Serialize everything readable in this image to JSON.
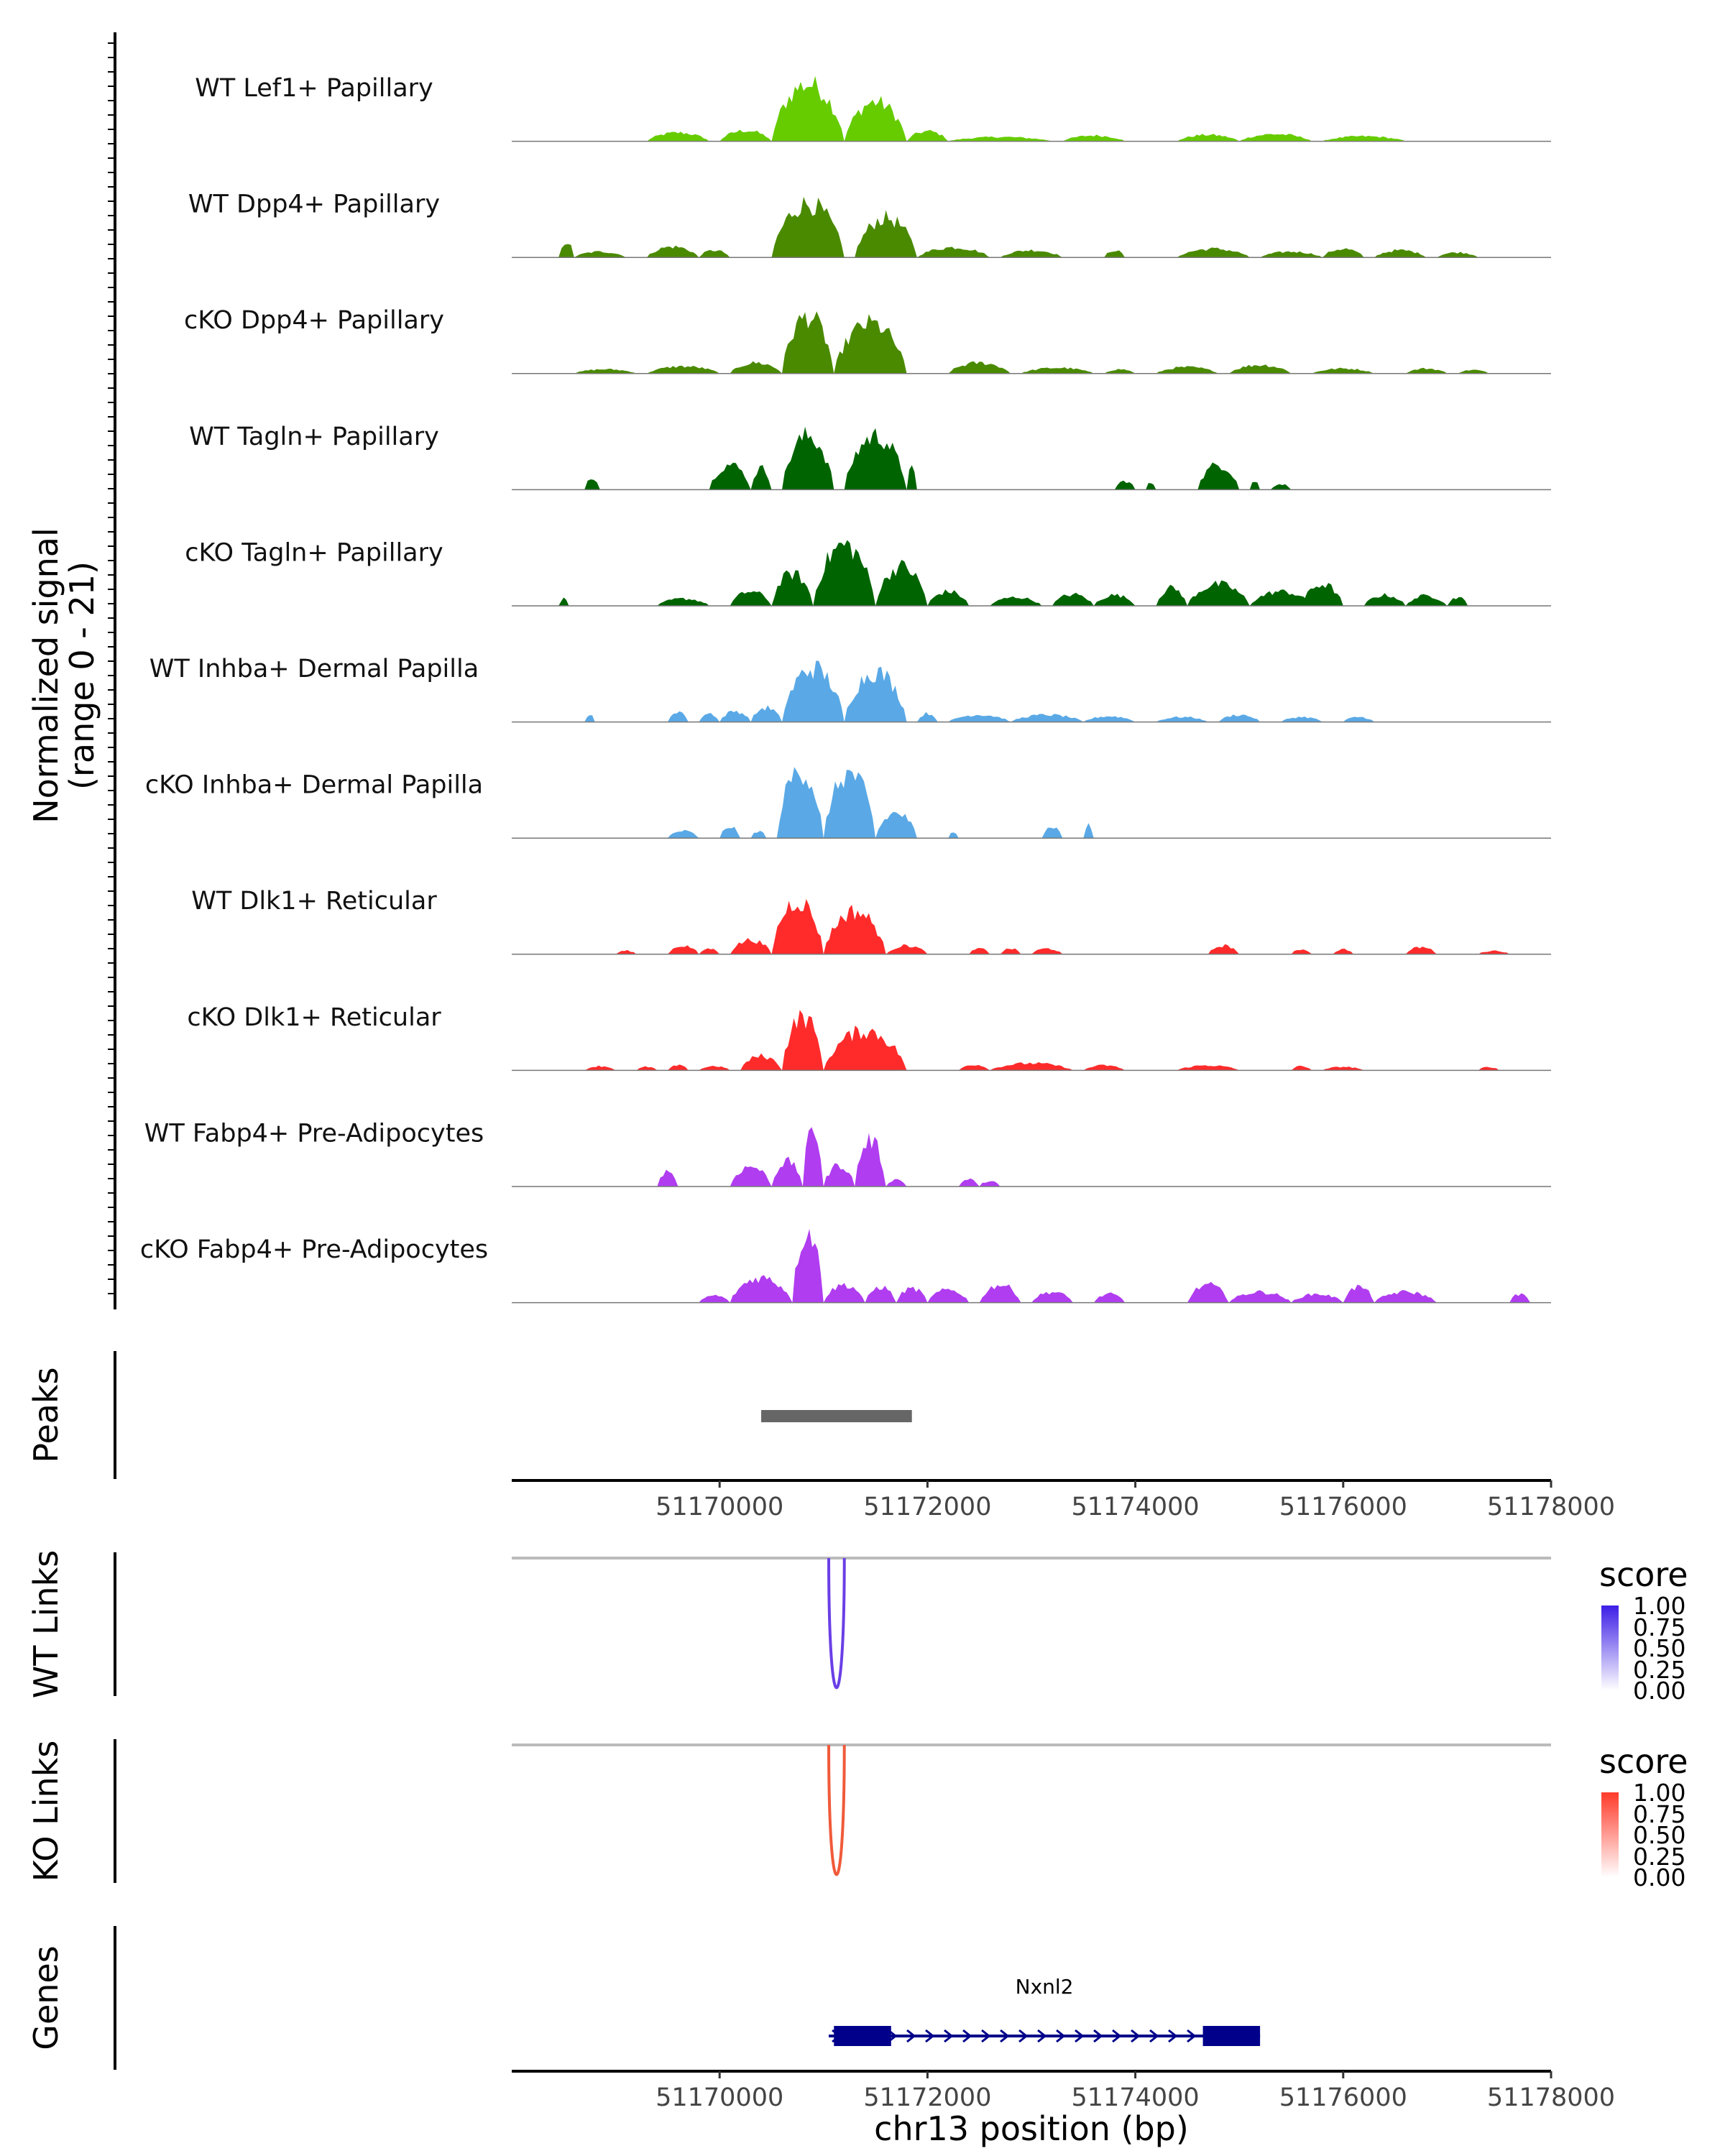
{
  "chart_data": {
    "type": "area",
    "title": "",
    "chromosome": "chr13",
    "xlabel": "chr13 position (bp)",
    "xlim": [
      51168000,
      51178000
    ],
    "x_ticks": [
      "51170000",
      "51172000",
      "51174000",
      "51176000",
      "51178000"
    ],
    "signal_ylabel_line1": "Normalized signal",
    "signal_ylabel_line2": "(range 0 - 21)",
    "ylim": [
      0,
      21
    ],
    "tracks": [
      {
        "name": "WT Lef1+ Papillary",
        "color": "#66cc00",
        "peaks": [
          [
            51169300,
            51169900,
            0.12
          ],
          [
            51170000,
            51170500,
            0.15
          ],
          [
            51170500,
            51171200,
            0.8
          ],
          [
            51171200,
            51171800,
            0.55
          ],
          [
            51171800,
            51172200,
            0.14
          ],
          [
            51172200,
            51173200,
            0.06
          ],
          [
            51173300,
            51173900,
            0.08
          ],
          [
            51174400,
            51175000,
            0.09
          ],
          [
            51175000,
            51175700,
            0.1
          ],
          [
            51175800,
            51176600,
            0.07
          ]
        ]
      },
      {
        "name": "WT Dpp4+ Papillary",
        "color": "#4a8a00",
        "peaks": [
          [
            51168450,
            51168600,
            0.22
          ],
          [
            51168600,
            51169100,
            0.08
          ],
          [
            51169300,
            51169800,
            0.15
          ],
          [
            51169800,
            51170100,
            0.1
          ],
          [
            51170500,
            51171200,
            0.75
          ],
          [
            51171300,
            51171900,
            0.55
          ],
          [
            51171900,
            51172600,
            0.14
          ],
          [
            51172700,
            51173300,
            0.1
          ],
          [
            51173700,
            51173900,
            0.1
          ],
          [
            51174400,
            51175100,
            0.12
          ],
          [
            51175200,
            51175800,
            0.08
          ],
          [
            51175800,
            51176200,
            0.12
          ],
          [
            51176300,
            51176800,
            0.1
          ],
          [
            51176900,
            51177300,
            0.07
          ]
        ]
      },
      {
        "name": "cKO Dpp4+ Papillary",
        "color": "#4a8a00",
        "peaks": [
          [
            51168600,
            51169200,
            0.06
          ],
          [
            51169300,
            51170000,
            0.1
          ],
          [
            51170100,
            51170600,
            0.15
          ],
          [
            51170600,
            51171100,
            0.8
          ],
          [
            51171100,
            51171800,
            0.7
          ],
          [
            51172200,
            51172800,
            0.15
          ],
          [
            51172900,
            51173600,
            0.08
          ],
          [
            51173700,
            51174000,
            0.06
          ],
          [
            51174200,
            51174800,
            0.09
          ],
          [
            51174900,
            51175500,
            0.12
          ],
          [
            51175700,
            51176300,
            0.07
          ],
          [
            51176600,
            51177000,
            0.07
          ],
          [
            51177100,
            51177400,
            0.05
          ]
        ]
      },
      {
        "name": "WT Tagln+ Papillary",
        "color": "#006400",
        "peaks": [
          [
            51168700,
            51168850,
            0.18
          ],
          [
            51169900,
            51170300,
            0.35
          ],
          [
            51170300,
            51170500,
            0.3
          ],
          [
            51170600,
            51171100,
            0.75
          ],
          [
            51171200,
            51171800,
            0.75
          ],
          [
            51171800,
            51171900,
            0.3
          ],
          [
            51173800,
            51174000,
            0.12
          ],
          [
            51174100,
            51174200,
            0.1
          ],
          [
            51174600,
            51175000,
            0.35
          ],
          [
            51175100,
            51175200,
            0.12
          ],
          [
            51175300,
            51175500,
            0.08
          ]
        ]
      },
      {
        "name": "cKO Tagln+ Papillary",
        "color": "#006400",
        "peaks": [
          [
            51168450,
            51168550,
            0.1
          ],
          [
            51169400,
            51169900,
            0.1
          ],
          [
            51170100,
            51170500,
            0.2
          ],
          [
            51170500,
            51170900,
            0.45
          ],
          [
            51170900,
            51171500,
            0.85
          ],
          [
            51171500,
            51172000,
            0.55
          ],
          [
            51172000,
            51172400,
            0.2
          ],
          [
            51172600,
            51173100,
            0.12
          ],
          [
            51173200,
            51173600,
            0.16
          ],
          [
            51173600,
            51174000,
            0.15
          ],
          [
            51174200,
            51174500,
            0.25
          ],
          [
            51174500,
            51175100,
            0.3
          ],
          [
            51175100,
            51175700,
            0.2
          ],
          [
            51175600,
            51176000,
            0.3
          ],
          [
            51176200,
            51176600,
            0.15
          ],
          [
            51176600,
            51177000,
            0.14
          ],
          [
            51177000,
            51177200,
            0.12
          ]
        ]
      },
      {
        "name": "WT Inhba+ Dermal Papilla",
        "color": "#5aa9e6",
        "peaks": [
          [
            51168700,
            51168800,
            0.1
          ],
          [
            51169500,
            51169700,
            0.15
          ],
          [
            51169800,
            51170000,
            0.12
          ],
          [
            51170000,
            51170300,
            0.15
          ],
          [
            51170300,
            51170600,
            0.2
          ],
          [
            51170600,
            51171200,
            0.75
          ],
          [
            51171200,
            51171800,
            0.7
          ],
          [
            51171900,
            51172100,
            0.12
          ],
          [
            51172200,
            51172800,
            0.1
          ],
          [
            51172800,
            51173500,
            0.1
          ],
          [
            51173500,
            51174000,
            0.08
          ],
          [
            51174200,
            51174700,
            0.07
          ],
          [
            51174800,
            51175200,
            0.1
          ],
          [
            51175400,
            51175800,
            0.07
          ],
          [
            51176000,
            51176300,
            0.07
          ]
        ]
      },
      {
        "name": "cKO Inhba+ Dermal Papilla",
        "color": "#5aa9e6",
        "peaks": [
          [
            51169500,
            51169800,
            0.1
          ],
          [
            51170000,
            51170200,
            0.16
          ],
          [
            51170300,
            51170450,
            0.1
          ],
          [
            51170550,
            51171000,
            0.95
          ],
          [
            51171000,
            51171500,
            0.9
          ],
          [
            51171500,
            51171900,
            0.35
          ],
          [
            51172200,
            51172300,
            0.1
          ],
          [
            51173100,
            51173300,
            0.16
          ],
          [
            51173500,
            51173600,
            0.18
          ]
        ]
      },
      {
        "name": "WT Dlk1+ Reticular",
        "color": "#ff2b2b",
        "peaks": [
          [
            51169000,
            51169200,
            0.05
          ],
          [
            51169500,
            51169800,
            0.12
          ],
          [
            51169800,
            51170000,
            0.08
          ],
          [
            51170100,
            51170500,
            0.2
          ],
          [
            51170500,
            51171000,
            0.75
          ],
          [
            51171000,
            51171600,
            0.6
          ],
          [
            51171600,
            51172000,
            0.12
          ],
          [
            51172400,
            51172600,
            0.08
          ],
          [
            51172700,
            51172900,
            0.08
          ],
          [
            51173000,
            51173300,
            0.08
          ],
          [
            51174700,
            51175000,
            0.12
          ],
          [
            51175500,
            51175700,
            0.07
          ],
          [
            51175900,
            51176100,
            0.07
          ],
          [
            51176600,
            51176900,
            0.1
          ],
          [
            51177300,
            51177600,
            0.05
          ]
        ]
      },
      {
        "name": "cKO Dlk1+ Reticular",
        "color": "#ff2b2b",
        "peaks": [
          [
            51168700,
            51169000,
            0.06
          ],
          [
            51169200,
            51169400,
            0.05
          ],
          [
            51169500,
            51169700,
            0.07
          ],
          [
            51169800,
            51170100,
            0.06
          ],
          [
            51170200,
            51170600,
            0.2
          ],
          [
            51170600,
            51171000,
            0.75
          ],
          [
            51171000,
            51171800,
            0.55
          ],
          [
            51172300,
            51172600,
            0.08
          ],
          [
            51172600,
            51173400,
            0.1
          ],
          [
            51173500,
            51173900,
            0.07
          ],
          [
            51174400,
            51175000,
            0.07
          ],
          [
            51175500,
            51175700,
            0.06
          ],
          [
            51175800,
            51176200,
            0.05
          ],
          [
            51177300,
            51177500,
            0.05
          ]
        ]
      },
      {
        "name": "WT Fabp4+ Pre-Adipocytes",
        "color": "#b03df0",
        "peaks": [
          [
            51169400,
            51169600,
            0.22
          ],
          [
            51170100,
            51170500,
            0.28
          ],
          [
            51170500,
            51170800,
            0.35
          ],
          [
            51170800,
            51171000,
            0.8
          ],
          [
            51171000,
            51171300,
            0.3
          ],
          [
            51171300,
            51171600,
            0.65
          ],
          [
            51171600,
            51171800,
            0.1
          ],
          [
            51172300,
            51172500,
            0.1
          ],
          [
            51172500,
            51172700,
            0.08
          ]
        ]
      },
      {
        "name": "cKO Fabp4+ Pre-Adipocytes",
        "color": "#b03df0",
        "peaks": [
          [
            51169800,
            51170100,
            0.1
          ],
          [
            51170100,
            51170700,
            0.35
          ],
          [
            51170700,
            51171000,
            1.0
          ],
          [
            51171000,
            51171400,
            0.25
          ],
          [
            51171400,
            51171700,
            0.22
          ],
          [
            51171700,
            51172000,
            0.2
          ],
          [
            51172000,
            51172400,
            0.18
          ],
          [
            51172500,
            51172900,
            0.25
          ],
          [
            51173000,
            51173400,
            0.15
          ],
          [
            51173600,
            51173900,
            0.12
          ],
          [
            51174500,
            51174900,
            0.25
          ],
          [
            51174900,
            51175500,
            0.15
          ],
          [
            51175500,
            51176000,
            0.12
          ],
          [
            51176000,
            51176300,
            0.22
          ],
          [
            51176300,
            51176900,
            0.15
          ],
          [
            51177600,
            51177800,
            0.12
          ]
        ]
      }
    ],
    "peaks_track": {
      "label": "Peaks",
      "color": "#666666",
      "regions": [
        [
          51170400,
          51171850
        ]
      ]
    },
    "links_tracks": [
      {
        "label": "WT Links",
        "color": "#6a3fe6",
        "baseline_color": "#bbbbbb",
        "links": [
          [
            51171050,
            51171200
          ]
        ],
        "score": 1.0
      },
      {
        "label": "KO Links",
        "color": "#f05a3a",
        "baseline_color": "#bbbbbb",
        "links": [
          [
            51171050,
            51171200
          ]
        ],
        "score": 1.0
      }
    ],
    "legends": [
      {
        "title": "score",
        "ticks": [
          "1.00",
          "0.75",
          "0.50",
          "0.25",
          "0.00"
        ],
        "low_color": "#ffffff",
        "high_color": "#3c1ee6"
      },
      {
        "title": "score",
        "ticks": [
          "1.00",
          "0.75",
          "0.50",
          "0.25",
          "0.00"
        ],
        "low_color": "#ffffff",
        "high_color": "#ff3a2a"
      }
    ],
    "genes_track": {
      "label": "Genes",
      "gene_name": "Nxnl2",
      "color": "#00008b",
      "start": 51171050,
      "end": 51175200,
      "exons": [
        [
          51171100,
          51171650
        ],
        [
          51174650,
          51175200
        ]
      ],
      "strand": "+"
    }
  }
}
